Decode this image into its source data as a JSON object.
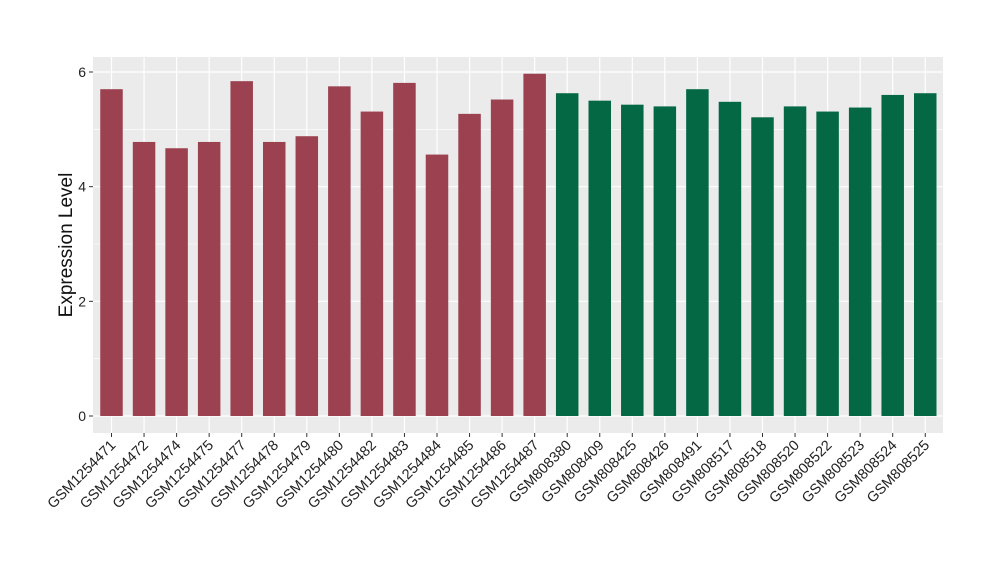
{
  "chart_data": {
    "type": "bar",
    "title": "",
    "xlabel": "",
    "ylabel": "Expression Level",
    "ylim": [
      0,
      6.3
    ],
    "yticks": [
      0,
      2,
      4,
      6
    ],
    "grid": true,
    "colors": {
      "group_a": "#9b4150",
      "group_b": "#046845",
      "panel_bg": "#ebebeb",
      "grid": "#ffffff"
    },
    "categories": [
      "GSM1254471",
      "GSM1254472",
      "GSM1254474",
      "GSM1254475",
      "GSM1254477",
      "GSM1254478",
      "GSM1254479",
      "GSM1254480",
      "GSM1254482",
      "GSM1254483",
      "GSM1254484",
      "GSM1254485",
      "GSM1254486",
      "GSM1254487",
      "GSM808380",
      "GSM808409",
      "GSM808425",
      "GSM808426",
      "GSM808491",
      "GSM808517",
      "GSM808518",
      "GSM808520",
      "GSM808522",
      "GSM808523",
      "GSM808524",
      "GSM808525"
    ],
    "values": [
      5.7,
      4.78,
      4.67,
      4.78,
      5.84,
      4.78,
      4.88,
      5.75,
      5.31,
      5.81,
      4.56,
      5.27,
      5.52,
      5.97,
      5.63,
      5.5,
      5.43,
      5.4,
      5.7,
      5.48,
      5.21,
      5.4,
      5.31,
      5.38,
      5.6,
      5.63
    ],
    "groups": [
      "a",
      "a",
      "a",
      "a",
      "a",
      "a",
      "a",
      "a",
      "a",
      "a",
      "a",
      "a",
      "a",
      "a",
      "b",
      "b",
      "b",
      "b",
      "b",
      "b",
      "b",
      "b",
      "b",
      "b",
      "b",
      "b"
    ]
  }
}
